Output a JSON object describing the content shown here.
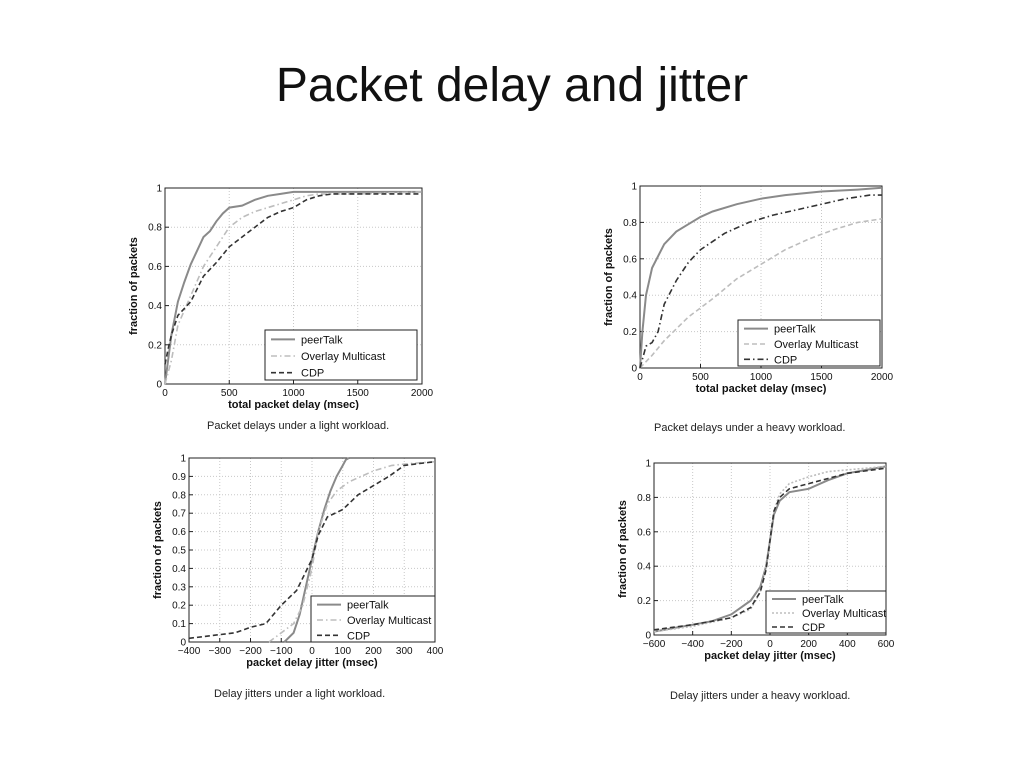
{
  "slide": {
    "title": "Packet delay and jitter"
  },
  "colors": {
    "peerTalk": "#8a8a8a",
    "overlay": "#bdbdbd",
    "cdp": "#333333",
    "grid": "#c8c8c8"
  },
  "chart_data": [
    {
      "type": "line",
      "caption": "Packet delays under a light workload.",
      "xlabel": "total packet delay (msec)",
      "ylabel": "fraction of packets",
      "xlim": [
        0,
        2000
      ],
      "ylim": [
        0,
        1
      ],
      "xticks": [
        0,
        500,
        1000,
        1500,
        2000
      ],
      "yticks": [
        0,
        0.2,
        0.4,
        0.6,
        0.8,
        1
      ],
      "yticklabels": [
        "0",
        "0.2",
        "0.4",
        "0.6",
        "0.8",
        "1"
      ],
      "grid": true,
      "legend": "bottom-right",
      "series": [
        {
          "name": "peerTalk",
          "style": "solid",
          "x": [
            0,
            50,
            100,
            150,
            200,
            250,
            300,
            350,
            400,
            450,
            500,
            600,
            700,
            800,
            900,
            1000,
            1500,
            2000
          ],
          "y": [
            0,
            0.25,
            0.42,
            0.52,
            0.61,
            0.68,
            0.75,
            0.78,
            0.83,
            0.87,
            0.9,
            0.91,
            0.94,
            0.96,
            0.97,
            0.98,
            0.98,
            0.98
          ]
        },
        {
          "name": "Overlay Multicast",
          "style": "dashdot",
          "x": [
            0,
            50,
            100,
            200,
            300,
            400,
            500,
            600,
            700,
            800,
            900,
            1000,
            1100,
            1200,
            1500,
            2000
          ],
          "y": [
            0,
            0.12,
            0.3,
            0.45,
            0.6,
            0.7,
            0.8,
            0.85,
            0.88,
            0.9,
            0.92,
            0.94,
            0.96,
            0.97,
            0.97,
            0.98
          ]
        },
        {
          "name": "CDP",
          "style": "dashed",
          "x": [
            0,
            25,
            50,
            100,
            200,
            300,
            400,
            500,
            600,
            700,
            800,
            900,
            1000,
            1100,
            1200,
            1300,
            1500,
            2000
          ],
          "y": [
            0.1,
            0.18,
            0.25,
            0.35,
            0.42,
            0.55,
            0.62,
            0.7,
            0.75,
            0.8,
            0.85,
            0.88,
            0.9,
            0.94,
            0.96,
            0.97,
            0.97,
            0.97
          ]
        }
      ]
    },
    {
      "type": "line",
      "caption": "Packet delays under a heavy workload.",
      "xlabel": "total packet delay (msec)",
      "ylabel": "fraction of packets",
      "xlim": [
        0,
        2000
      ],
      "ylim": [
        0,
        1
      ],
      "xticks": [
        0,
        500,
        1000,
        1500,
        2000
      ],
      "yticks": [
        0,
        0.2,
        0.4,
        0.6,
        0.8,
        1
      ],
      "yticklabels": [
        "0",
        "0.2",
        "0.4",
        "0.6",
        "0.8",
        "1"
      ],
      "grid": true,
      "legend": "bottom-right",
      "series": [
        {
          "name": "peerTalk",
          "style": "solid",
          "x": [
            0,
            20,
            50,
            100,
            200,
            300,
            400,
            500,
            600,
            800,
            1000,
            1200,
            1500,
            1800,
            2000
          ],
          "y": [
            0,
            0.2,
            0.4,
            0.55,
            0.68,
            0.75,
            0.79,
            0.83,
            0.86,
            0.9,
            0.93,
            0.95,
            0.97,
            0.98,
            0.99
          ]
        },
        {
          "name": "Overlay Multicast",
          "style": "dashed",
          "x": [
            0,
            100,
            200,
            400,
            600,
            800,
            1000,
            1200,
            1400,
            1600,
            1800,
            2000
          ],
          "y": [
            0,
            0.07,
            0.15,
            0.28,
            0.38,
            0.49,
            0.57,
            0.65,
            0.71,
            0.76,
            0.8,
            0.82
          ]
        },
        {
          "name": "CDP",
          "style": "dashdot",
          "x": [
            0,
            50,
            100,
            150,
            200,
            300,
            400,
            500,
            700,
            900,
            1100,
            1300,
            1500,
            1700,
            1900,
            2000
          ],
          "y": [
            0,
            0.12,
            0.14,
            0.2,
            0.35,
            0.48,
            0.58,
            0.65,
            0.74,
            0.8,
            0.84,
            0.87,
            0.9,
            0.93,
            0.95,
            0.95
          ]
        }
      ]
    },
    {
      "type": "line",
      "caption": "Delay jitters under a light workload.",
      "xlabel": "packet delay jitter (msec)",
      "ylabel": "fraction of packets",
      "xlim": [
        -400,
        400
      ],
      "ylim": [
        0,
        1
      ],
      "xticks": [
        -400,
        -300,
        -200,
        -100,
        0,
        100,
        200,
        300,
        400
      ],
      "yticks": [
        0,
        0.1,
        0.2,
        0.3,
        0.4,
        0.5,
        0.6,
        0.7,
        0.8,
        0.9,
        1
      ],
      "yticklabels": [
        "0",
        "0.1",
        "0.2",
        "0.3",
        "0.4",
        "0.5",
        "0.6",
        "0.7",
        "0.8",
        "0.9",
        "1"
      ],
      "grid": true,
      "legend": "bottom-right",
      "series": [
        {
          "name": "peerTalk",
          "style": "solid",
          "x": [
            -90,
            -60,
            -40,
            -20,
            0,
            20,
            40,
            60,
            80,
            100,
            110,
            120
          ],
          "y": [
            0,
            0.05,
            0.15,
            0.3,
            0.45,
            0.6,
            0.72,
            0.82,
            0.9,
            0.96,
            0.99,
            1
          ]
        },
        {
          "name": "Overlay Multicast",
          "style": "dashdot",
          "x": [
            -140,
            -100,
            -60,
            -30,
            0,
            20,
            50,
            80,
            120,
            160,
            200,
            260,
            320,
            400
          ],
          "y": [
            0,
            0.05,
            0.1,
            0.2,
            0.4,
            0.6,
            0.75,
            0.82,
            0.87,
            0.9,
            0.93,
            0.96,
            0.97,
            0.98
          ]
        },
        {
          "name": "CDP",
          "style": "dashed",
          "x": [
            -400,
            -350,
            -300,
            -250,
            -200,
            -150,
            -100,
            -50,
            0,
            20,
            50,
            100,
            150,
            200,
            250,
            300,
            350,
            400
          ],
          "y": [
            0.02,
            0.03,
            0.04,
            0.05,
            0.08,
            0.1,
            0.2,
            0.28,
            0.45,
            0.58,
            0.68,
            0.72,
            0.8,
            0.85,
            0.9,
            0.96,
            0.97,
            0.98
          ]
        }
      ]
    },
    {
      "type": "line",
      "caption": "Delay jitters under a heavy workload.",
      "xlabel": "packet delay jitter (msec)",
      "ylabel": "fraction of packets",
      "xlim": [
        -600,
        600
      ],
      "ylim": [
        0,
        1
      ],
      "xticks": [
        -600,
        -400,
        -200,
        0,
        200,
        400,
        600
      ],
      "yticks": [
        0,
        0.2,
        0.4,
        0.6,
        0.8,
        1
      ],
      "yticklabels": [
        "0",
        "0.2",
        "0.4",
        "0.6",
        "0.8",
        "1"
      ],
      "grid": true,
      "legend": "bottom-right",
      "series": [
        {
          "name": "peerTalk",
          "style": "solid",
          "x": [
            -600,
            -500,
            -400,
            -300,
            -200,
            -100,
            -50,
            -20,
            0,
            20,
            50,
            100,
            200,
            300,
            400,
            500,
            600
          ],
          "y": [
            0.02,
            0.04,
            0.06,
            0.08,
            0.12,
            0.2,
            0.28,
            0.4,
            0.55,
            0.7,
            0.78,
            0.83,
            0.85,
            0.9,
            0.94,
            0.96,
            0.98
          ]
        },
        {
          "name": "Overlay Multicast",
          "style": "dotted",
          "x": [
            -600,
            -400,
            -200,
            -100,
            -50,
            -20,
            0,
            20,
            50,
            100,
            200,
            300,
            400,
            600
          ],
          "y": [
            0.02,
            0.05,
            0.1,
            0.15,
            0.25,
            0.4,
            0.55,
            0.72,
            0.82,
            0.88,
            0.92,
            0.95,
            0.96,
            0.98
          ]
        },
        {
          "name": "CDP",
          "style": "dashed",
          "x": [
            -600,
            -400,
            -200,
            -100,
            -50,
            -20,
            0,
            20,
            50,
            100,
            200,
            300,
            400,
            600
          ],
          "y": [
            0.03,
            0.06,
            0.1,
            0.16,
            0.25,
            0.38,
            0.55,
            0.72,
            0.8,
            0.85,
            0.88,
            0.91,
            0.94,
            0.97
          ]
        }
      ]
    }
  ]
}
